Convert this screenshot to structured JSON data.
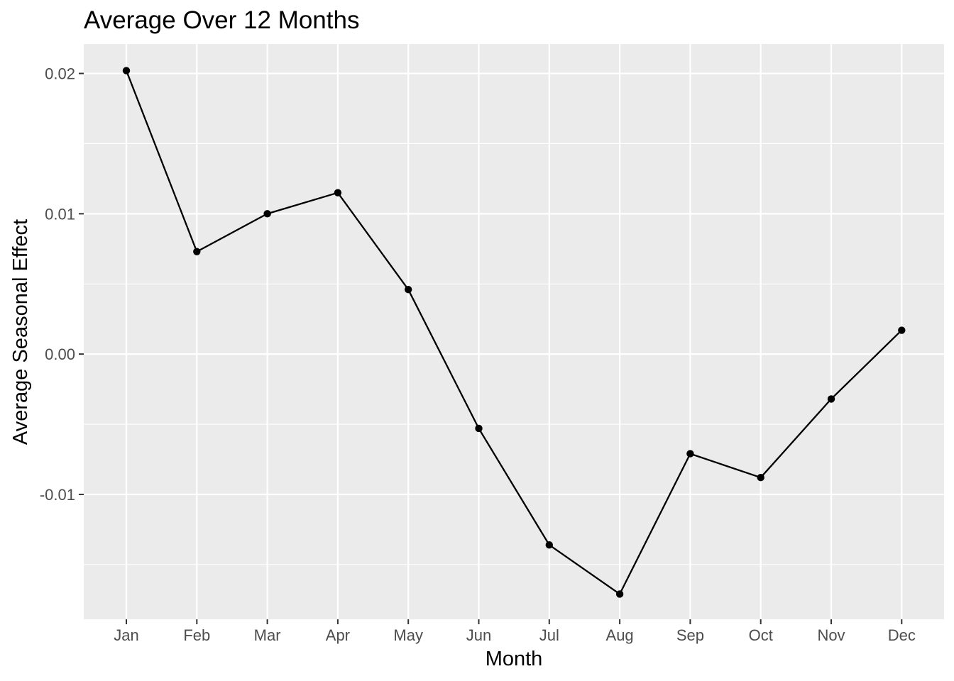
{
  "chart_data": {
    "type": "line",
    "title": "Average Over 12 Months",
    "xlabel": "Month",
    "ylabel": "Average Seasonal Effect",
    "categories": [
      "Jan",
      "Feb",
      "Mar",
      "Apr",
      "May",
      "Jun",
      "Jul",
      "Aug",
      "Sep",
      "Oct",
      "Nov",
      "Dec"
    ],
    "series": [
      {
        "values": [
          0.0202,
          0.0073,
          0.01,
          0.0115,
          0.0046,
          -0.0053,
          -0.0136,
          -0.0171,
          -0.0071,
          -0.0088,
          -0.0032,
          0.0017
        ]
      }
    ],
    "ylim": [
      -0.0189,
      0.0221
    ],
    "y_ticks": [
      {
        "value": 0.02,
        "label": "0.02"
      },
      {
        "value": 0.01,
        "label": "0.01"
      },
      {
        "value": 0.0,
        "label": "0.00"
      },
      {
        "value": -0.01,
        "label": "-0.01"
      }
    ],
    "y_minor_ticks": [
      0.015,
      0.005,
      -0.005,
      -0.015
    ],
    "grid": true,
    "legend": "none",
    "colors": {
      "panel_background": "#ebebeb",
      "grid_line": "#ffffff",
      "line": "#000000",
      "point": "#000000",
      "tick_label": "#4d4d4d",
      "tick_mark": "#333333"
    }
  }
}
